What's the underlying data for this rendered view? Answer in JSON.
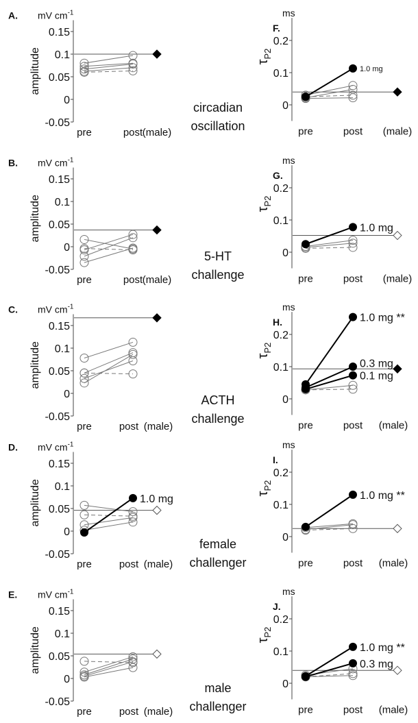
{
  "x_categories": [
    "pre",
    "post",
    "(male)"
  ],
  "row_labels": [
    [
      "circadian",
      "oscillation"
    ],
    [
      "5-HT",
      "challenge"
    ],
    [
      "ACTH",
      "challenge"
    ],
    [
      "female",
      "challenger"
    ],
    [
      "male",
      "challenger"
    ]
  ],
  "chart_data": [
    {
      "panel": "A.",
      "type": "line",
      "unit": "mV cm",
      "unit_sup": "-1",
      "ylabel": "amplitude",
      "ylim": [
        -0.05,
        0.175
      ],
      "ticks": [
        "0.15",
        "0.1",
        "0.05",
        "0",
        "-0.05"
      ],
      "tick_values": [
        0.15,
        0.1,
        0.05,
        0,
        -0.05
      ],
      "male": {
        "value": 0.1,
        "filled": true
      },
      "subjects": [
        {
          "pre": 0.08,
          "post": 0.097
        },
        {
          "pre": 0.073,
          "post": 0.08
        },
        {
          "pre": 0.067,
          "post": 0.078
        },
        {
          "pre": 0.062,
          "post": 0.07
        },
        {
          "pre": 0.06,
          "post": 0.063,
          "dashed": true
        }
      ]
    },
    {
      "panel": "B.",
      "type": "line",
      "unit": "mV cm",
      "unit_sup": "-1",
      "ylabel": "amplitude",
      "ylim": [
        -0.05,
        0.175
      ],
      "ticks": [
        "0.15",
        "0.1",
        "0.05",
        "0",
        "-0.05"
      ],
      "tick_values": [
        0.15,
        0.1,
        0.05,
        0,
        -0.05
      ],
      "male": {
        "value": 0.037,
        "filled": true
      },
      "subjects": [
        {
          "pre": 0.016,
          "post": -0.005
        },
        {
          "pre": -0.007,
          "post": 0.027
        },
        {
          "pre": -0.021,
          "post": 0.02
        },
        {
          "pre": -0.035,
          "post": -0.003
        },
        {
          "pre": -0.004,
          "post": -0.007,
          "dashed": true
        }
      ]
    },
    {
      "panel": "C.",
      "type": "line",
      "unit": "mV cm",
      "unit_sup": "-1",
      "ylabel": "amplitude",
      "ylim": [
        -0.05,
        0.175
      ],
      "ticks": [
        "0.15",
        "0.1",
        "0.05",
        "0",
        "-0.05"
      ],
      "tick_values": [
        0.15,
        0.1,
        0.05,
        0,
        -0.05
      ],
      "male": {
        "value": 0.167,
        "filled": true
      },
      "subjects": [
        {
          "pre": 0.078,
          "post": 0.113
        },
        {
          "pre": 0.045,
          "post": 0.09
        },
        {
          "pre": 0.033,
          "post": 0.072
        },
        {
          "pre": 0.023,
          "post": 0.086
        },
        {
          "pre": 0.045,
          "post": 0.043,
          "dashed": true
        }
      ]
    },
    {
      "panel": "D.",
      "type": "line",
      "unit": "mV cm",
      "unit_sup": "-1",
      "ylabel": "amplitude",
      "ylim": [
        -0.05,
        0.175
      ],
      "ticks": [
        "0.15",
        "0.1",
        "0.05",
        "0",
        "-0.05"
      ],
      "tick_values": [
        0.15,
        0.1,
        0.05,
        0,
        -0.05
      ],
      "male": {
        "value": 0.046,
        "filled": false
      },
      "subjects": [
        {
          "pre": 0.057,
          "post": 0.043
        },
        {
          "pre": 0.036,
          "post": 0.033,
          "dashed": true
        },
        {
          "pre": 0.014,
          "post": 0.03
        },
        {
          "pre": 0.002,
          "post": 0.02
        },
        {
          "pre": -0.003,
          "post": 0.073,
          "filled": true,
          "label": "1.0 mg"
        }
      ]
    },
    {
      "panel": "E.",
      "type": "line",
      "unit": "mV cm",
      "unit_sup": "-1",
      "ylabel": "amplitude",
      "ylim": [
        -0.05,
        0.175
      ],
      "ticks": [
        "0.15",
        "0.1",
        "0.05",
        "0",
        "-0.05"
      ],
      "tick_values": [
        0.15,
        0.1,
        0.05,
        0,
        -0.05
      ],
      "male": {
        "value": 0.054,
        "filled": false
      },
      "subjects": [
        {
          "pre": 0.038,
          "post": 0.035,
          "dashed": true
        },
        {
          "pre": 0.014,
          "post": 0.048
        },
        {
          "pre": 0.008,
          "post": 0.043
        },
        {
          "pre": 0.005,
          "post": 0.037
        },
        {
          "pre": 0.003,
          "post": 0.024
        }
      ]
    },
    {
      "panel": "F.",
      "type": "line",
      "unit": "ms",
      "ylabel": "τ",
      "ylabel_sub": "P2",
      "ylim": [
        -0.05,
        0.27
      ],
      "ticks": [
        "0.2",
        "0.1",
        "0"
      ],
      "tick_values": [
        0.2,
        0.1,
        0
      ],
      "male": {
        "value": 0.04,
        "filled": true
      },
      "subjects": [
        {
          "pre": 0.03,
          "post": 0.06
        },
        {
          "pre": 0.022,
          "post": 0.048
        },
        {
          "pre": 0.02,
          "post": 0.022
        },
        {
          "pre": 0.025,
          "post": 0.03,
          "dashed": true
        },
        {
          "pre": 0.025,
          "post": 0.113,
          "filled": true,
          "label": "1.0 mg",
          "small": true
        }
      ]
    },
    {
      "panel": "G.",
      "type": "line",
      "unit": "ms",
      "ylabel": "τ",
      "ylabel_sub": "P2",
      "ylim": [
        -0.05,
        0.27
      ],
      "ticks": [
        "0.2",
        "0.1",
        "0"
      ],
      "tick_values": [
        0.2,
        0.1,
        0
      ],
      "male": {
        "value": 0.052,
        "filled": false
      },
      "subjects": [
        {
          "pre": 0.018,
          "post": 0.037
        },
        {
          "pre": 0.015,
          "post": 0.028
        },
        {
          "pre": 0.012,
          "post": 0.015,
          "dashed": true
        },
        {
          "pre": 0.025,
          "post": 0.078,
          "filled": true,
          "label": "1.0 mg"
        }
      ]
    },
    {
      "panel": "H.",
      "type": "line",
      "unit": "ms",
      "ylabel": "τ",
      "ylabel_sub": "P2",
      "ylim": [
        -0.05,
        0.27
      ],
      "ticks": [
        "0.2",
        "0.1",
        "0"
      ],
      "tick_values": [
        0.2,
        0.1,
        0
      ],
      "male": {
        "value": 0.093,
        "filled": true
      },
      "subjects": [
        {
          "pre": 0.028,
          "post": 0.042
        },
        {
          "pre": 0.028,
          "post": 0.03,
          "dashed": true
        },
        {
          "pre": 0.03,
          "post": 0.073,
          "filled": true,
          "label": "0.1 mg"
        },
        {
          "pre": 0.035,
          "post": 0.1,
          "filled": true,
          "label": "0.3 mg"
        },
        {
          "pre": 0.045,
          "post": 0.254,
          "filled": true,
          "label": "1.0 mg **"
        }
      ]
    },
    {
      "panel": "I.",
      "type": "line",
      "unit": "ms",
      "ylabel": "τ",
      "ylabel_sub": "P2",
      "ylim": [
        -0.05,
        0.27
      ],
      "ticks": [
        "0.2",
        "0.1",
        "0"
      ],
      "tick_values": [
        0.2,
        0.1,
        0
      ],
      "male": {
        "value": 0.025,
        "filled": false
      },
      "subjects": [
        {
          "pre": 0.028,
          "post": 0.04
        },
        {
          "pre": 0.022,
          "post": 0.037
        },
        {
          "pre": 0.02,
          "post": 0.025,
          "dashed": true
        },
        {
          "pre": 0.03,
          "post": 0.13,
          "filled": true,
          "label": "1.0 mg **"
        }
      ]
    },
    {
      "panel": "J.",
      "type": "line",
      "unit": "ms",
      "ylabel": "τ",
      "ylabel_sub": "P2",
      "ylim": [
        -0.05,
        0.27
      ],
      "ticks": [
        "0.2",
        "0.1",
        "0"
      ],
      "tick_values": [
        0.2,
        0.1,
        0
      ],
      "male": {
        "value": 0.04,
        "filled": false
      },
      "subjects": [
        {
          "pre": 0.025,
          "post": 0.045
        },
        {
          "pre": 0.02,
          "post": 0.03,
          "dashed": true
        },
        {
          "pre": 0.02,
          "post": 0.024
        },
        {
          "pre": 0.02,
          "post": 0.062,
          "filled": true,
          "label": "0.3 mg"
        },
        {
          "pre": 0.022,
          "post": 0.113,
          "filled": true,
          "label": "1.0 mg **"
        }
      ]
    }
  ]
}
